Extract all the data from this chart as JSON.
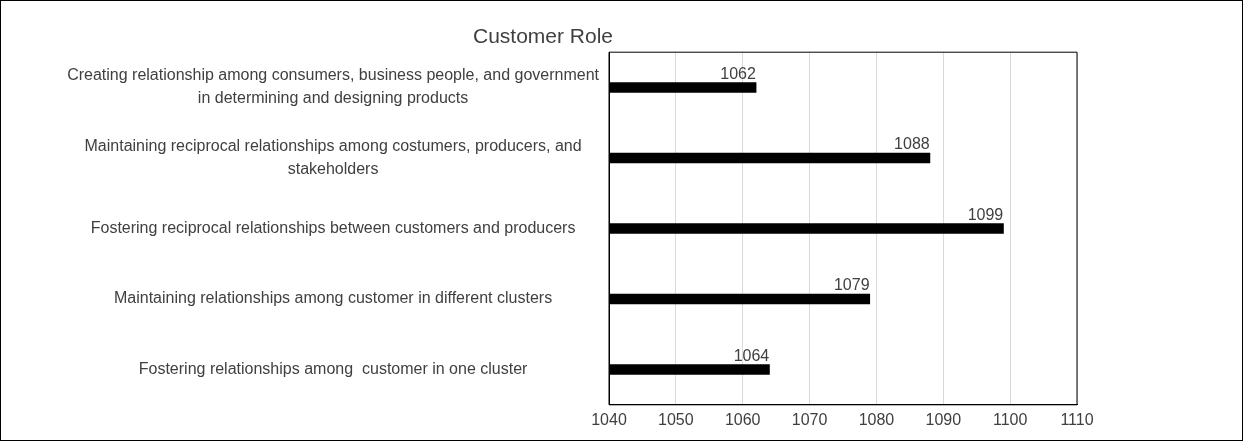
{
  "chart_data": {
    "type": "bar",
    "orientation": "horizontal",
    "title": "Customer Role",
    "categories": [
      "Creating relationship among consumers, business people, and government in determining and designing products",
      "Maintaining reciprocal relationships among costumers, producers, and stakeholders",
      "Fostering reciprocal relationships between customers and producers",
      "Maintaining relationships among customer in different clusters",
      "Fostering relationships among  customer in one cluster"
    ],
    "values": [
      1062,
      1088,
      1099,
      1079,
      1064
    ],
    "color": "#000000",
    "xlim": [
      1040,
      1110
    ],
    "xticks": [
      1040,
      1050,
      1060,
      1070,
      1080,
      1090,
      1100,
      1110
    ],
    "grid": "x",
    "data_labels": true
  }
}
